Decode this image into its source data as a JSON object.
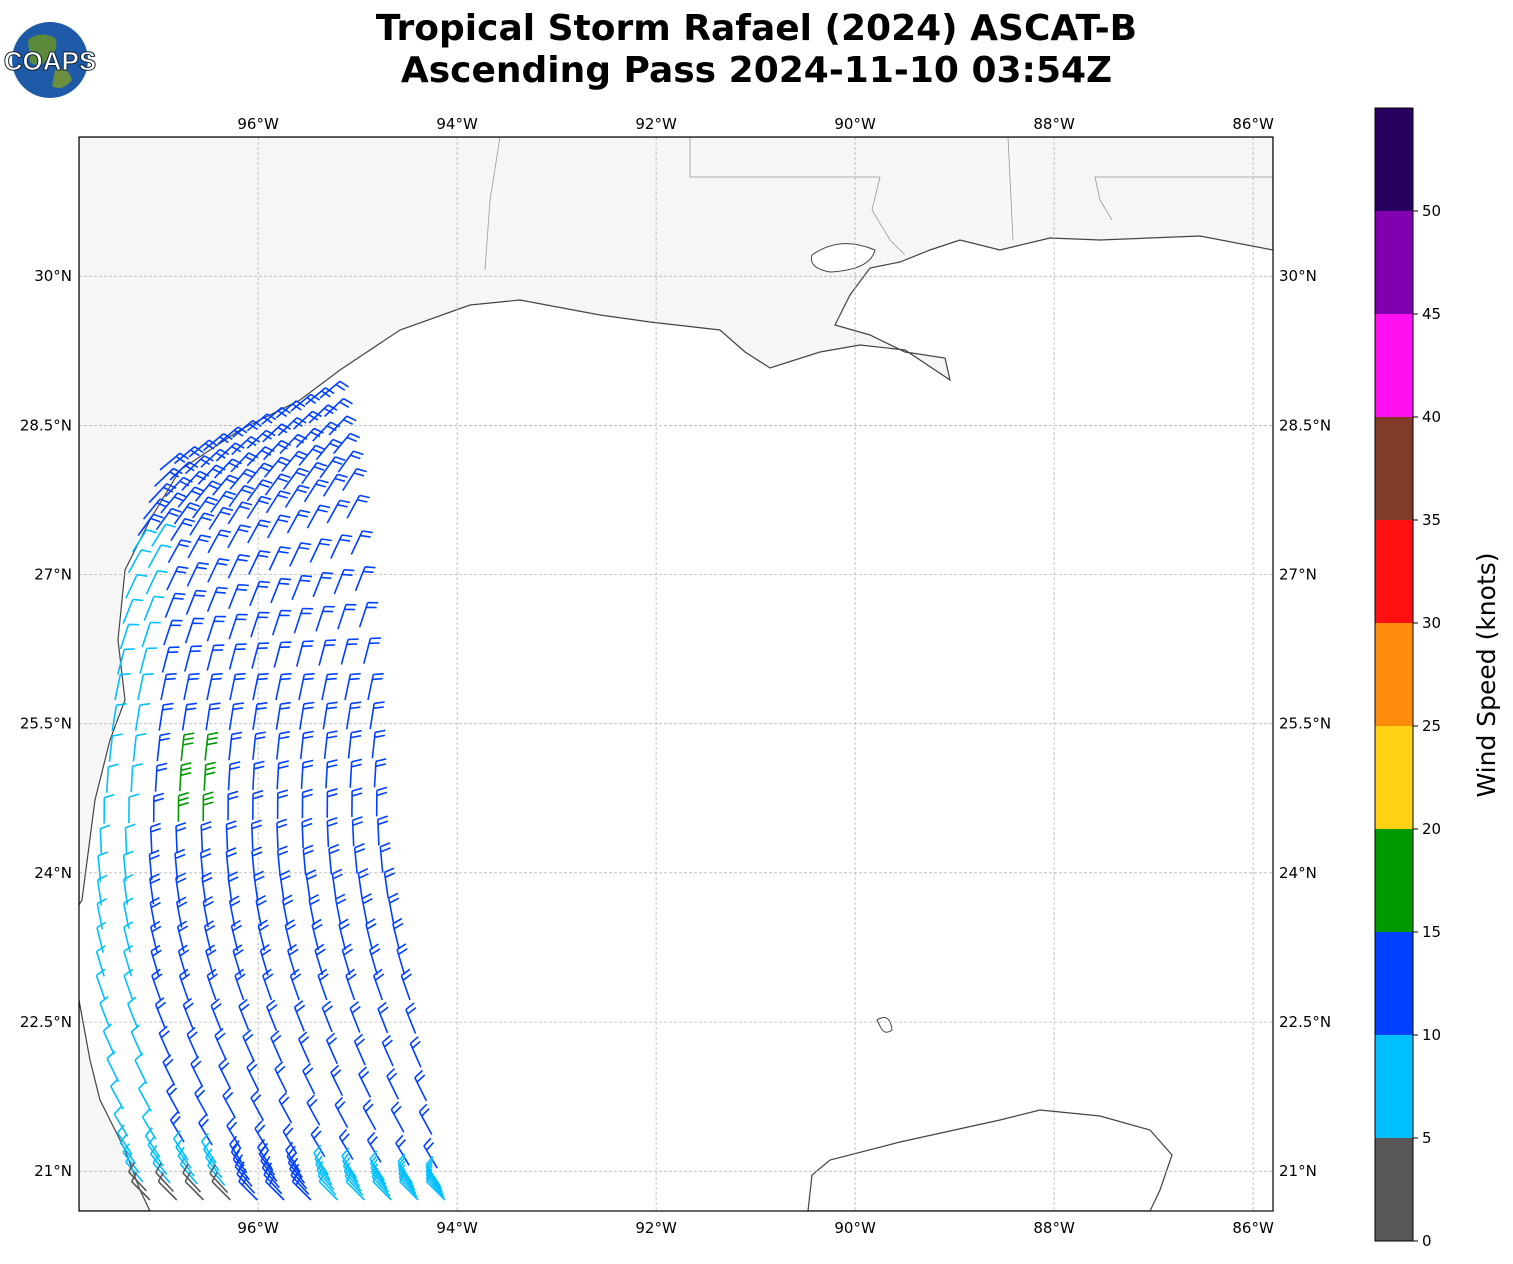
{
  "title": {
    "line1": "Tropical Storm Rafael (2024) ASCAT-B",
    "line2": "Ascending Pass 2024-11-10 03:54Z"
  },
  "logo": {
    "text": "COAPS",
    "icon": "globe-logo-icon"
  },
  "map": {
    "lon_range": [
      -97.8,
      -85.8
    ],
    "lat_range": [
      20.6,
      31.4
    ],
    "lon_ticks": [
      {
        "value": -96,
        "label": "96°W"
      },
      {
        "value": -94,
        "label": "94°W"
      },
      {
        "value": -92,
        "label": "92°W"
      },
      {
        "value": -90,
        "label": "90°W"
      },
      {
        "value": -88,
        "label": "88°W"
      },
      {
        "value": -86,
        "label": "86°W"
      }
    ],
    "lat_ticks": [
      {
        "value": 30,
        "label": "30°N"
      },
      {
        "value": 28.5,
        "label": "28.5°N"
      },
      {
        "value": 27,
        "label": "27°N"
      },
      {
        "value": 25.5,
        "label": "25.5°N"
      },
      {
        "value": 24,
        "label": "24°N"
      },
      {
        "value": 22.5,
        "label": "22.5°N"
      },
      {
        "value": 21,
        "label": "21°N"
      }
    ],
    "gridlines": true
  },
  "colorbar": {
    "label": "Wind Speed (knots)",
    "ticks": [
      "0",
      "5",
      "10",
      "15",
      "20",
      "25",
      "30",
      "35",
      "40",
      "45",
      "50"
    ],
    "bins": [
      {
        "from": 0,
        "to": 5,
        "color": "#585858"
      },
      {
        "from": 5,
        "to": 10,
        "color": "#00bfff"
      },
      {
        "from": 10,
        "to": 15,
        "color": "#0040ff"
      },
      {
        "from": 15,
        "to": 20,
        "color": "#009900"
      },
      {
        "from": 20,
        "to": 25,
        "color": "#ffd314"
      },
      {
        "from": 25,
        "to": 30,
        "color": "#ff8c0a"
      },
      {
        "from": 30,
        "to": 35,
        "color": "#ff1010"
      },
      {
        "from": 35,
        "to": 40,
        "color": "#803c28"
      },
      {
        "from": 40,
        "to": 45,
        "color": "#ff10f0"
      },
      {
        "from": 45,
        "to": 50,
        "color": "#8000b0"
      },
      {
        "from": 50,
        "to": 55,
        "color": "#280060"
      }
    ]
  }
}
